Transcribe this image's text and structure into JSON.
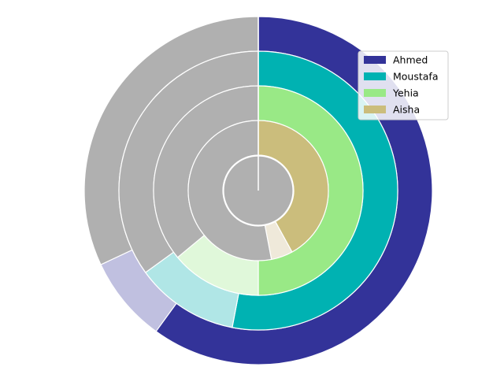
{
  "chart_data": {
    "type": "pie",
    "variant": "radial-progress-rings",
    "legend_position": "upper-right",
    "track_color": "#b0b0b0",
    "rings": [
      {
        "name": "Ahmed",
        "color": "#333399",
        "faded_color": "#c0c0e0",
        "main_percent": 60,
        "faded_percent": 8
      },
      {
        "name": "Moustafa",
        "color": "#00b2b2",
        "faded_color": "#b0e6e6",
        "main_percent": 53,
        "faded_percent": 12
      },
      {
        "name": "Yehia",
        "color": "#99e986",
        "faded_color": "#e0f8da",
        "main_percent": 50,
        "faded_percent": 14
      },
      {
        "name": "Aisha",
        "color": "#cbbd7c",
        "faded_color": "#efe9da",
        "main_percent": 42,
        "faded_percent": 5
      }
    ]
  }
}
